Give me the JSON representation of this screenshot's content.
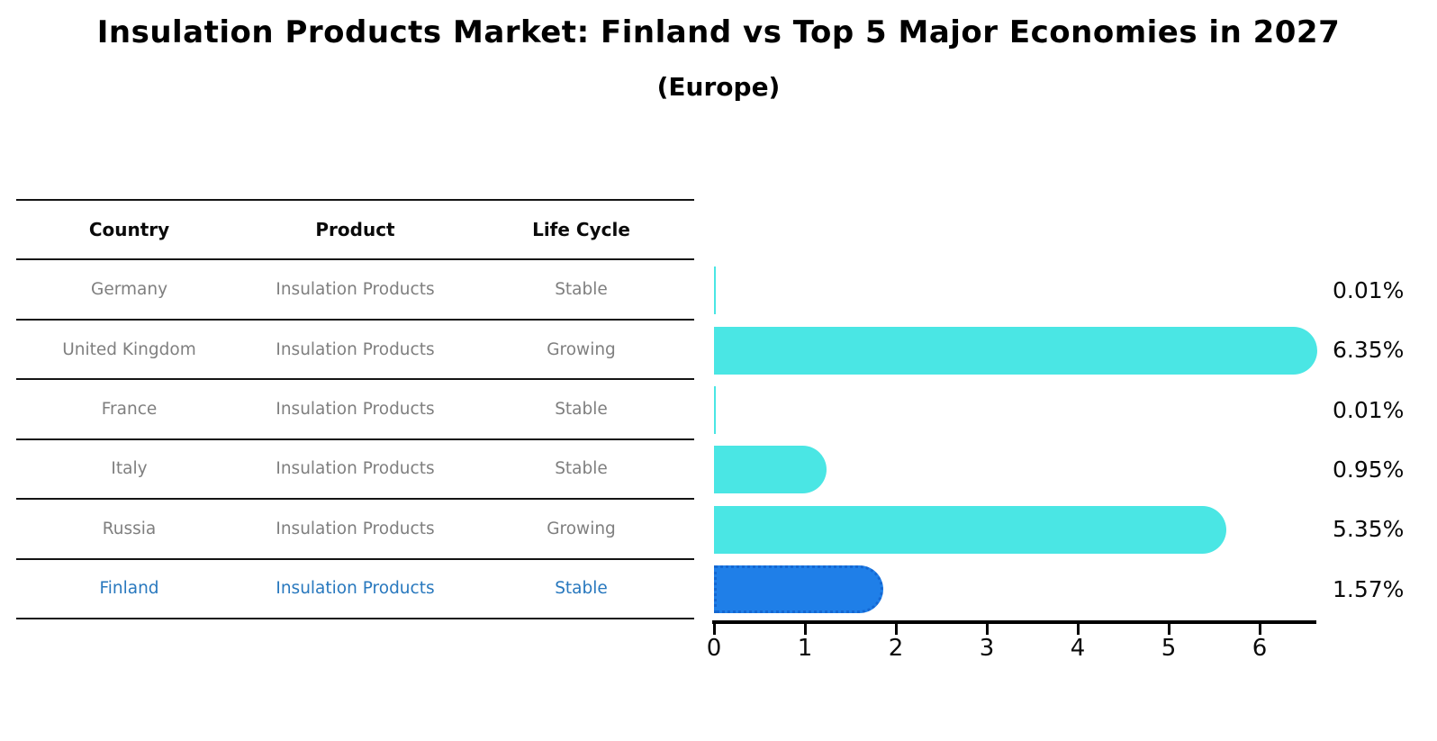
{
  "title": "Insulation Products Market: Finland vs Top 5 Major Economies in 2027",
  "subtitle": "(Europe)",
  "colors": {
    "bar_default": "#4AE6E4",
    "bar_highlight": "#1F7FE8",
    "bar_highlight_border": "#1467D2",
    "highlight_text": "#2878BE",
    "table_text": "#7f7f7f",
    "axis": "#000000"
  },
  "table": {
    "headers": [
      "Country",
      "Product",
      "Life Cycle"
    ],
    "rows": [
      {
        "country": "Germany",
        "product": "Insulation Products",
        "life_cycle": "Stable",
        "highlight": false
      },
      {
        "country": "United Kingdom",
        "product": "Insulation Products",
        "life_cycle": "Growing",
        "highlight": false
      },
      {
        "country": "France",
        "product": "Insulation Products",
        "life_cycle": "Stable",
        "highlight": false
      },
      {
        "country": "Italy",
        "product": "Insulation Products",
        "life_cycle": "Stable",
        "highlight": false
      },
      {
        "country": "Russia",
        "product": "Insulation Products",
        "life_cycle": "Growing",
        "highlight": false
      },
      {
        "country": "Finland",
        "product": "Insulation Products",
        "life_cycle": "Stable",
        "highlight": true
      }
    ]
  },
  "chart_data": {
    "type": "bar",
    "orientation": "horizontal",
    "title": "Insulation Products Market: Finland vs Top 5 Major Economies in 2027 (Europe)",
    "categories": [
      "Germany",
      "United Kingdom",
      "France",
      "Italy",
      "Russia",
      "Finland"
    ],
    "values": [
      0.01,
      6.35,
      0.01,
      0.95,
      5.35,
      1.57
    ],
    "value_labels": [
      "0.01%",
      "6.35%",
      "0.01%",
      "0.95%",
      "5.35%",
      "1.57%"
    ],
    "highlight_index": 5,
    "x_ticks": [
      "0",
      "1",
      "2",
      "3",
      "4",
      "5",
      "6"
    ],
    "xlim": [
      0,
      6.6
    ],
    "xlabel": "",
    "ylabel": "",
    "grid": false,
    "legend": "none"
  }
}
